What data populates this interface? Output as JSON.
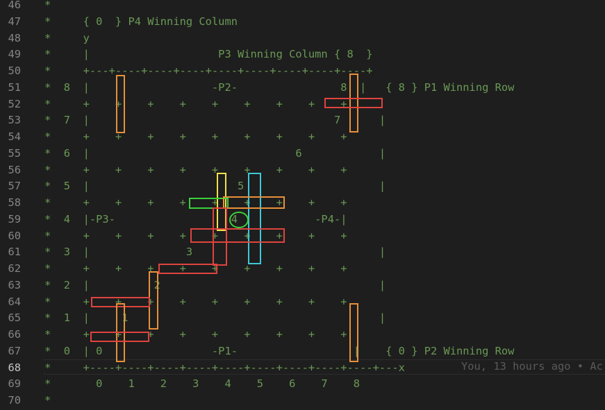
{
  "editor": {
    "line_numbers": [
      "46",
      "47",
      "48",
      "49",
      "50",
      "51",
      "52",
      "53",
      "54",
      "55",
      "56",
      "57",
      "58",
      "59",
      "60",
      "61",
      "62",
      "63",
      "64",
      "65",
      "66",
      "67",
      "68",
      "69",
      "70"
    ],
    "lines": [
      "*",
      "*     { 0  } P4 Winning Column",
      "*     y",
      "*     |                    P3 Winning Column { 8  }",
      "*     +---+----+----+----+----+----+----+----+----+",
      "*  8  |                   -P2-                8  |   { 8 } P1 Winning Row",
      "*     +    +    +    +    +    +    +    +    +",
      "*  7  |                                      7      |",
      "*     +    +    +    +    +    +    +    +    +",
      "*  6  |                                6            |",
      "*     +    +    +    +    +    +    +    +    +",
      "*  5  |                       5                     |",
      "*     +    +    +    +    +    +    +    +    +",
      "*  4  |-P3-                  4            -P4-|",
      "*     +    +    +    +    +    +    +    +    +",
      "*  3  |               3                             |",
      "*     +    +    +    +    +    +    +    +    +",
      "*  2  |          2                                  |",
      "*     +    +    +    +    +    +    +    +    +",
      "*  1  |     1                                       |",
      "*     +    +    +    +    +    +    +    +    +",
      "*  0  | 0                 -P1-                  |    { 0 } P2 Winning Row",
      "*     +----+----+----+----+----+----+----+----+----+---x",
      "*       0    1    2    3    4    5    6    7    8",
      "*"
    ],
    "active_line_index": 22,
    "git_blame": "You, 13 hours ago • Ac"
  },
  "colors": {
    "background": "#1e1e1e",
    "comment": "#6a9955",
    "line_number": "#858585",
    "line_number_active": "#c6c6c6",
    "blame": "#5a5a5a",
    "wall_red": "#e0443e",
    "wall_orange": "#e8913a",
    "wall_yellow": "#f2e14a",
    "wall_cyan": "#3fc9d6",
    "wall_green": "#3bd13b"
  }
}
